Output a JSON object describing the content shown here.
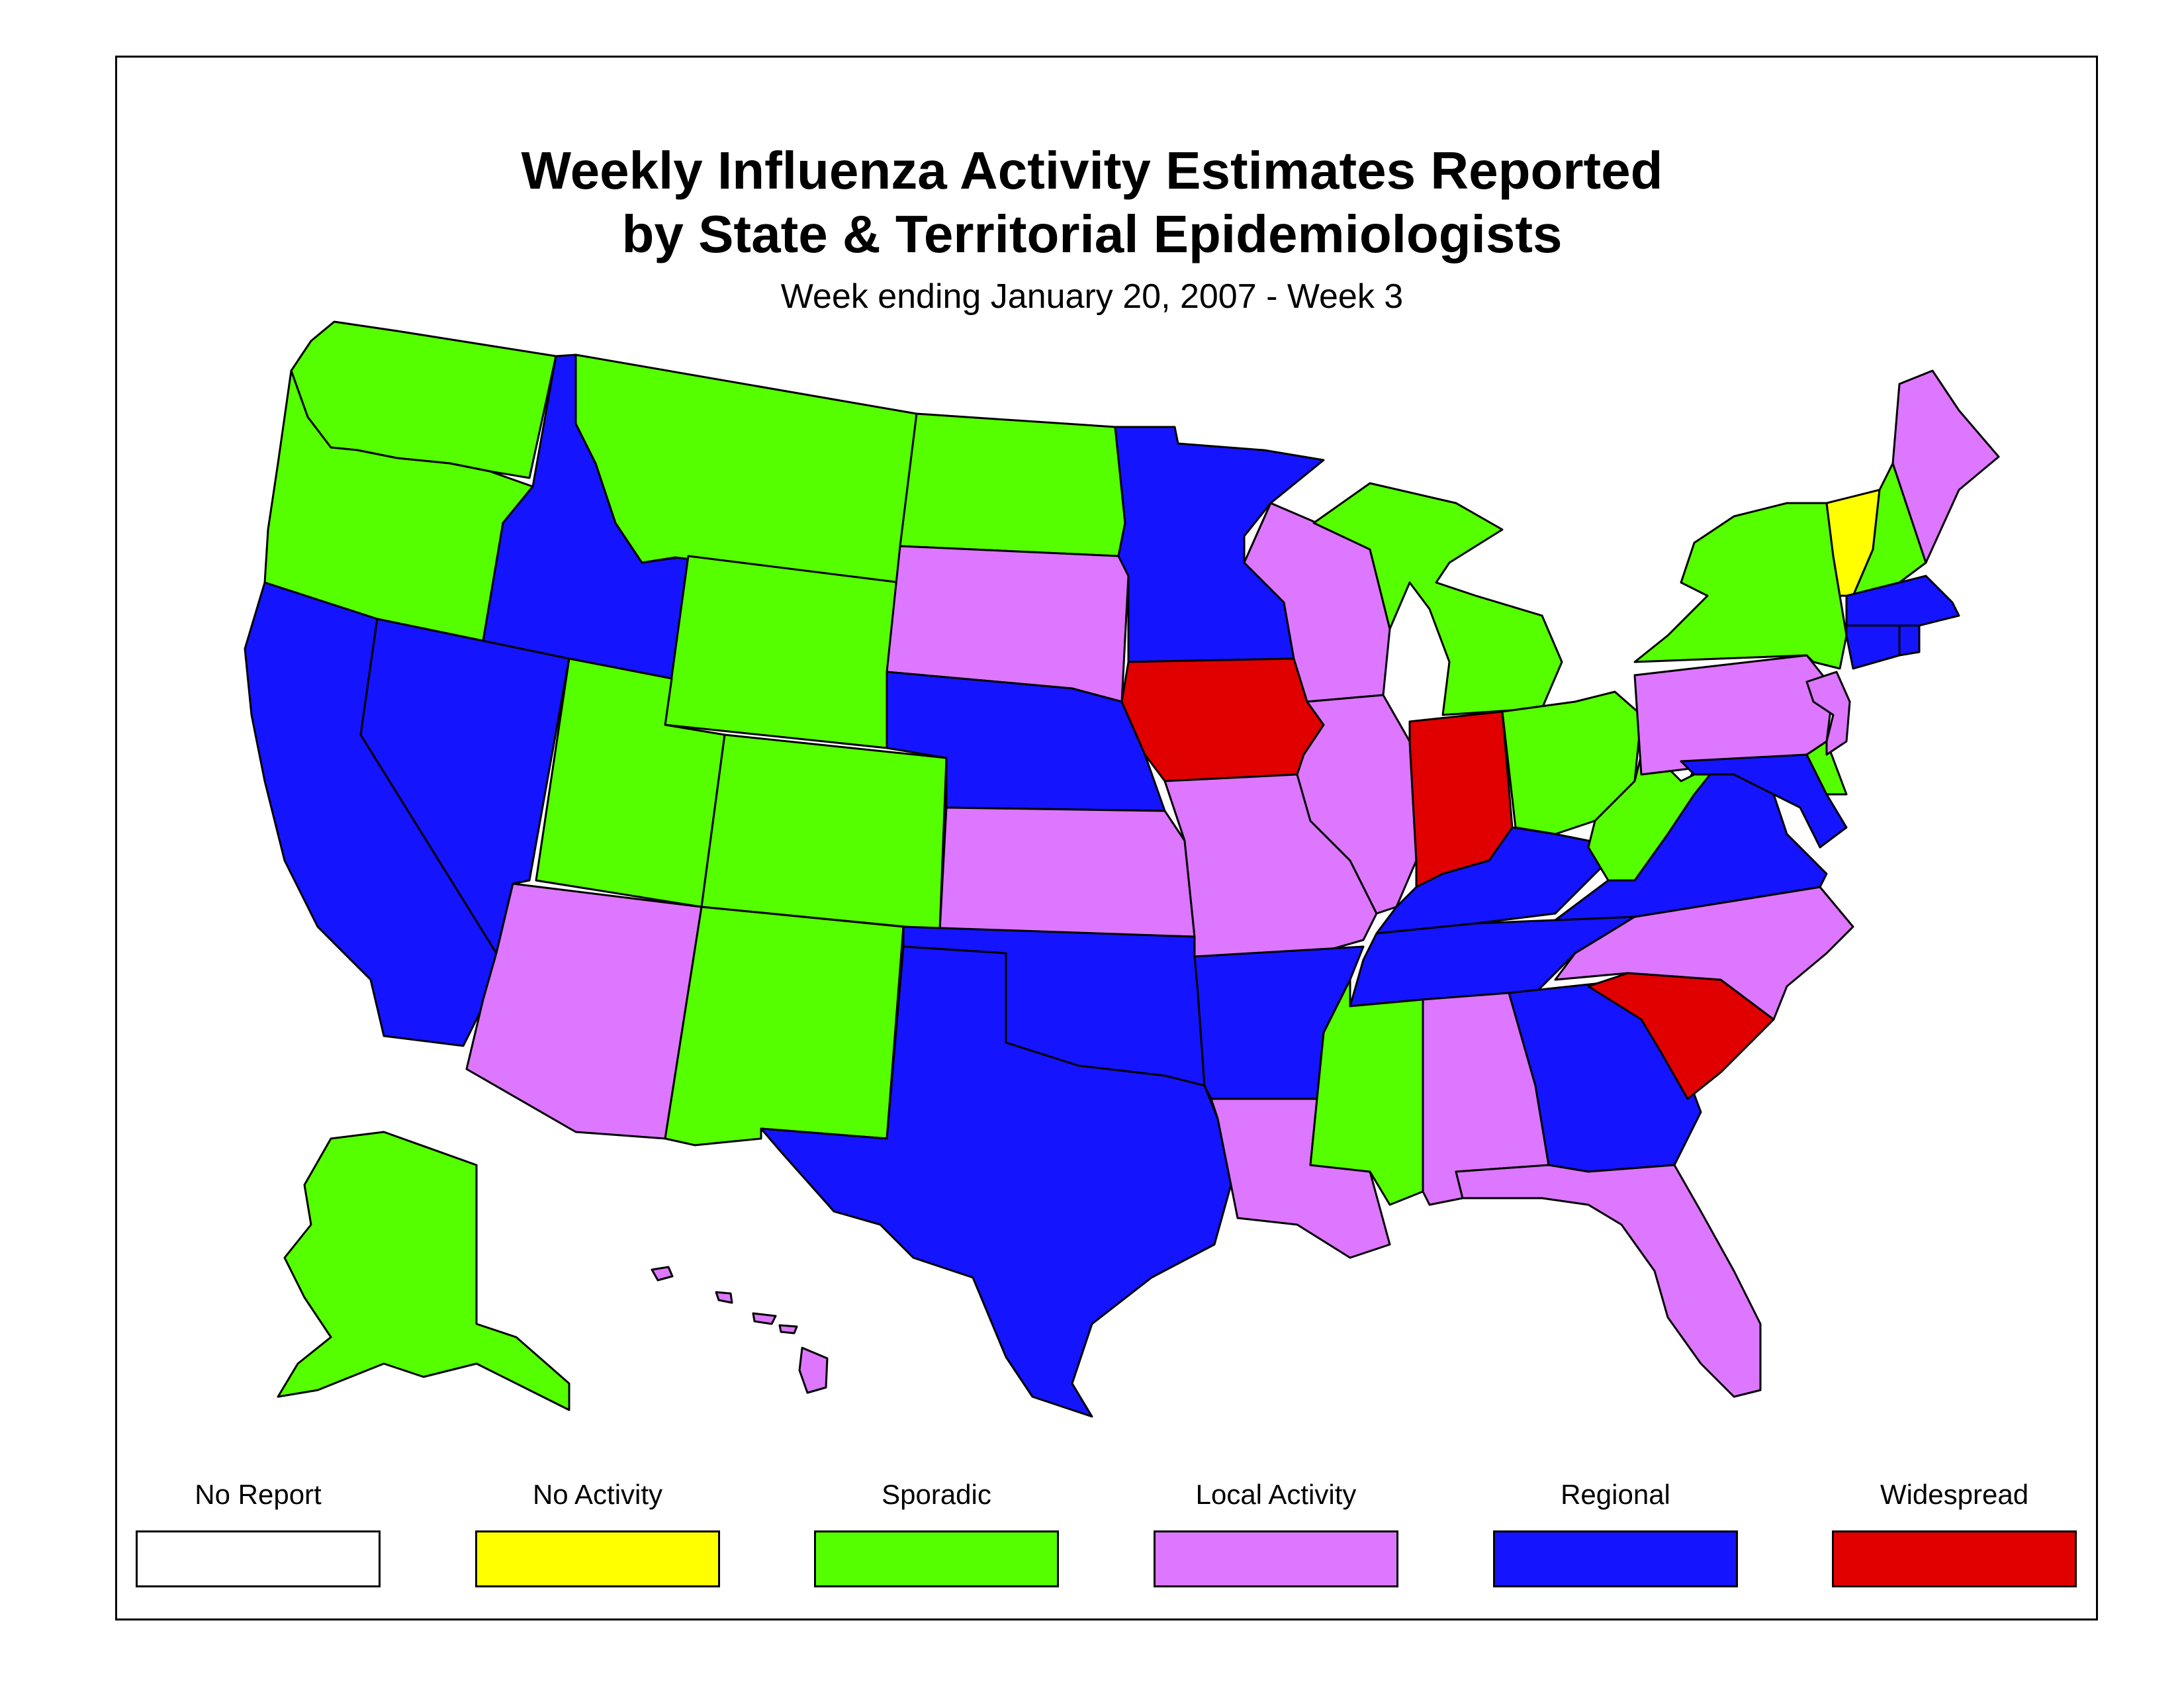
{
  "title_line1": "Weekly Influenza Activity Estimates Reported",
  "title_line2": "by State & Territorial Epidemiologists",
  "subtitle": "Week ending January 20, 2007 - Week 3",
  "colors": {
    "no_report": "#ffffff",
    "no_activity": "#ffff00",
    "sporadic": "#55ff00",
    "local": "#dd77ff",
    "regional": "#1414ff",
    "widespread": "#e00000"
  },
  "legend": [
    {
      "key": "no_report",
      "label": "No Report"
    },
    {
      "key": "no_activity",
      "label": "No Activity"
    },
    {
      "key": "sporadic",
      "label": "Sporadic"
    },
    {
      "key": "local",
      "label": "Local Activity"
    },
    {
      "key": "regional",
      "label": "Regional"
    },
    {
      "key": "widespread",
      "label": "Widespread"
    }
  ],
  "state_activity": {
    "WA": "sporadic",
    "OR": "sporadic",
    "CA": "regional",
    "NV": "regional",
    "ID": "regional",
    "MT": "sporadic",
    "WY": "sporadic",
    "UT": "sporadic",
    "CO": "sporadic",
    "AZ": "local",
    "NM": "sporadic",
    "ND": "sporadic",
    "SD": "local",
    "NE": "regional",
    "KS": "local",
    "OK": "regional",
    "TX": "regional",
    "MN": "regional",
    "IA": "widespread",
    "MO": "local",
    "AR": "regional",
    "LA": "local",
    "WI": "local",
    "IL": "local",
    "MI": "sporadic",
    "IN": "widespread",
    "OH": "sporadic",
    "KY": "regional",
    "TN": "regional",
    "MS": "sporadic",
    "AL": "local",
    "GA": "regional",
    "FL": "local",
    "SC": "widespread",
    "NC": "local",
    "VA": "regional",
    "WV": "sporadic",
    "MD": "regional",
    "DE": "sporadic",
    "PA": "local",
    "NJ": "local",
    "NY": "sporadic",
    "CT": "regional",
    "RI": "regional",
    "MA": "regional",
    "VT": "no_activity",
    "NH": "sporadic",
    "ME": "local",
    "AK": "sporadic",
    "HI": "local"
  }
}
